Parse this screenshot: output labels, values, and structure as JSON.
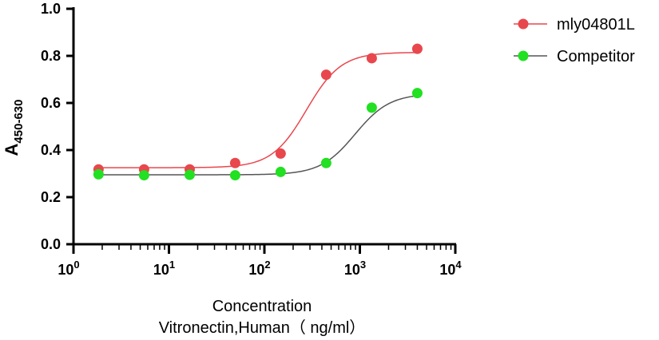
{
  "chart_data": {
    "type": "scatter",
    "title": "",
    "xlabel": "Concentration",
    "xlabel_sub": "Vitronectin,Human（ ng/ml）",
    "ylabel": "A",
    "ylabel_sub": "450-630",
    "xscale": "log10",
    "xlim": [
      1,
      10000
    ],
    "ylim": [
      0,
      1.0
    ],
    "x_ticks": [
      {
        "base": "10",
        "exp": "0",
        "value": 1
      },
      {
        "base": "10",
        "exp": "1",
        "value": 10
      },
      {
        "base": "10",
        "exp": "2",
        "value": 100
      },
      {
        "base": "10",
        "exp": "3",
        "value": 1000
      },
      {
        "base": "10",
        "exp": "4",
        "value": 10000
      }
    ],
    "y_ticks": [
      "0.0",
      "0.2",
      "0.4",
      "0.6",
      "0.8",
      "1.0"
    ],
    "legend_position": "top-right",
    "series": [
      {
        "name": "mly04801L",
        "color": "#e8474d",
        "line_color": "#e8474d",
        "x": [
          1.83,
          5.49,
          16.5,
          49.4,
          148,
          444,
          1333,
          4000
        ],
        "y": [
          0.318,
          0.318,
          0.318,
          0.345,
          0.385,
          0.72,
          0.79,
          0.83
        ],
        "fit": {
          "bottom": 0.325,
          "top": 0.815,
          "log_ec50": 2.44,
          "hill": 2.4
        }
      },
      {
        "name": "Competitor",
        "color": "#22e022",
        "line_color": "#555555",
        "x": [
          1.83,
          5.49,
          16.5,
          49.4,
          148,
          444,
          1333,
          4000
        ],
        "y": [
          0.297,
          0.293,
          0.295,
          0.293,
          0.307,
          0.345,
          0.58,
          0.642
        ],
        "fit": {
          "bottom": 0.295,
          "top": 0.64,
          "log_ec50": 2.95,
          "hill": 2.4
        }
      }
    ]
  }
}
